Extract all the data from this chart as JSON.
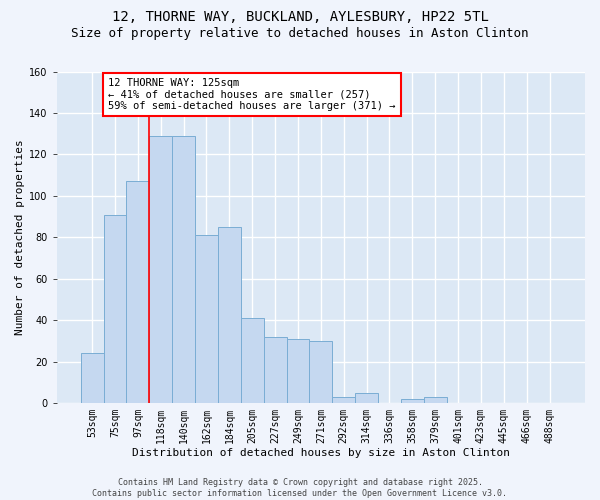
{
  "title_line1": "12, THORNE WAY, BUCKLAND, AYLESBURY, HP22 5TL",
  "title_line2": "Size of property relative to detached houses in Aston Clinton",
  "xlabel": "Distribution of detached houses by size in Aston Clinton",
  "ylabel": "Number of detached properties",
  "bar_color": "#c5d8f0",
  "bar_edge_color": "#7aadd4",
  "bg_color": "#dce8f5",
  "fig_color": "#f0f4fc",
  "grid_color": "#ffffff",
  "categories": [
    "53sqm",
    "75sqm",
    "97sqm",
    "118sqm",
    "140sqm",
    "162sqm",
    "184sqm",
    "205sqm",
    "227sqm",
    "249sqm",
    "271sqm",
    "292sqm",
    "314sqm",
    "336sqm",
    "358sqm",
    "379sqm",
    "401sqm",
    "423sqm",
    "445sqm",
    "466sqm",
    "488sqm"
  ],
  "values": [
    24,
    91,
    107,
    129,
    129,
    81,
    85,
    41,
    32,
    31,
    30,
    3,
    5,
    0,
    2,
    3,
    0,
    0,
    0,
    0,
    0
  ],
  "red_line_x": 2.5,
  "ylim": [
    0,
    160
  ],
  "yticks": [
    0,
    20,
    40,
    60,
    80,
    100,
    120,
    140,
    160
  ],
  "annotation_text": "12 THORNE WAY: 125sqm\n← 41% of detached houses are smaller (257)\n59% of semi-detached houses are larger (371) →",
  "footer_text": "Contains HM Land Registry data © Crown copyright and database right 2025.\nContains public sector information licensed under the Open Government Licence v3.0.",
  "title_fontsize": 10,
  "subtitle_fontsize": 9,
  "axis_label_fontsize": 8,
  "tick_fontsize": 7,
  "annot_fontsize": 7.5,
  "footer_fontsize": 6
}
